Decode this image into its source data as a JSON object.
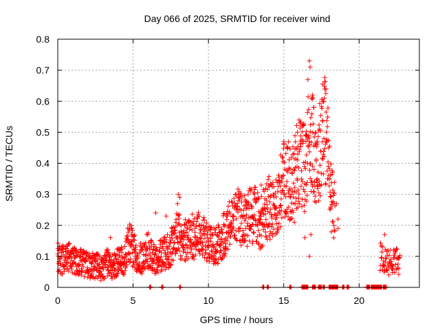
{
  "chart_data": {
    "type": "scatter",
    "title": "Day 066 of 2025, SRMTID for receiver wind",
    "xlabel": "GPS time / hours",
    "ylabel": "SRMTID / TECUs",
    "xlim": [
      0,
      24
    ],
    "ylim": [
      0,
      0.8
    ],
    "xticks": [
      0,
      5,
      10,
      15,
      20
    ],
    "xtick_labels": [
      "0",
      "5",
      "10",
      "15",
      "20"
    ],
    "yticks": [
      0,
      0.1,
      0.2,
      0.3,
      0.4,
      0.5,
      0.6,
      0.7,
      0.8
    ],
    "ytick_labels": [
      "0",
      "0.1",
      "0.2",
      "0.3",
      "0.4",
      "0.5",
      "0.6",
      "0.7",
      "0.8"
    ],
    "grid": true,
    "marker": "+",
    "color": "#ff0000",
    "series": [
      {
        "name": "SRMTID",
        "trend": [
          [
            0.0,
            0.1
          ],
          [
            0.3,
            0.09
          ],
          [
            0.6,
            0.1
          ],
          [
            1.0,
            0.09
          ],
          [
            1.5,
            0.08
          ],
          [
            2.0,
            0.07
          ],
          [
            2.5,
            0.07
          ],
          [
            3.0,
            0.06
          ],
          [
            3.3,
            0.08
          ],
          [
            3.6,
            0.07
          ],
          [
            4.0,
            0.08
          ],
          [
            4.4,
            0.09
          ],
          [
            4.6,
            0.13
          ],
          [
            4.8,
            0.15
          ],
          [
            5.0,
            0.12
          ],
          [
            5.3,
            0.1
          ],
          [
            5.6,
            0.09
          ],
          [
            5.8,
            0.11
          ],
          [
            6.0,
            0.12
          ],
          [
            6.2,
            0.1
          ],
          [
            6.5,
            0.09
          ],
          [
            6.8,
            0.1
          ],
          [
            7.1,
            0.11
          ],
          [
            7.4,
            0.12
          ],
          [
            7.6,
            0.14
          ],
          [
            7.9,
            0.17
          ],
          [
            8.2,
            0.16
          ],
          [
            8.5,
            0.15
          ],
          [
            8.8,
            0.17
          ],
          [
            9.1,
            0.16
          ],
          [
            9.4,
            0.18
          ],
          [
            9.8,
            0.16
          ],
          [
            10.1,
            0.14
          ],
          [
            10.4,
            0.13
          ],
          [
            10.7,
            0.14
          ],
          [
            11.0,
            0.17
          ],
          [
            11.3,
            0.19
          ],
          [
            11.6,
            0.21
          ],
          [
            11.9,
            0.23
          ],
          [
            12.2,
            0.22
          ],
          [
            12.5,
            0.21
          ],
          [
            12.8,
            0.24
          ],
          [
            13.1,
            0.23
          ],
          [
            13.4,
            0.21
          ],
          [
            13.7,
            0.23
          ],
          [
            14.0,
            0.26
          ],
          [
            14.3,
            0.24
          ],
          [
            14.6,
            0.28
          ],
          [
            14.9,
            0.33
          ],
          [
            15.2,
            0.36
          ],
          [
            15.5,
            0.32
          ],
          [
            15.8,
            0.38
          ],
          [
            16.1,
            0.42
          ],
          [
            16.4,
            0.38
          ],
          [
            16.7,
            0.5
          ],
          [
            17.0,
            0.44
          ],
          [
            17.3,
            0.4
          ],
          [
            17.6,
            0.55
          ],
          [
            17.9,
            0.46
          ],
          [
            18.1,
            0.3
          ],
          [
            18.4,
            0.24
          ]
        ],
        "late_trend": [
          [
            21.4,
            0.1
          ],
          [
            21.7,
            0.09
          ],
          [
            22.0,
            0.08
          ],
          [
            22.3,
            0.09
          ],
          [
            22.7,
            0.08
          ]
        ],
        "peaks": [
          [
            16.7,
            0.73
          ],
          [
            16.75,
            0.71
          ],
          [
            16.9,
            0.62
          ],
          [
            17.0,
            0.58
          ],
          [
            17.6,
            0.6
          ],
          [
            17.8,
            0.64
          ],
          [
            17.7,
            0.61
          ],
          [
            16.2,
            0.52
          ],
          [
            16.5,
            0.49
          ],
          [
            15.9,
            0.5
          ],
          [
            8.0,
            0.3
          ],
          [
            8.1,
            0.29
          ],
          [
            7.95,
            0.27
          ],
          [
            6.5,
            0.24
          ],
          [
            7.2,
            0.23
          ],
          [
            15.0,
            0.47
          ],
          [
            16.6,
            0.67
          ],
          [
            17.2,
            0.46
          ],
          [
            18.5,
            0.27
          ],
          [
            18.6,
            0.22
          ],
          [
            18.6,
            0.19
          ],
          [
            16.8,
            0.17
          ],
          [
            16.7,
            0.1
          ],
          [
            16.4,
            0.16
          ],
          [
            15.7,
            0.21
          ],
          [
            13.5,
            0.33
          ],
          [
            12.0,
            0.28
          ],
          [
            4.9,
            0.19
          ],
          [
            3.5,
            0.16
          ],
          [
            21.7,
            0.17
          ]
        ],
        "zero_ranges": [
          [
            6.1,
            6.2
          ],
          [
            6.9,
            7.0
          ],
          [
            8.1,
            8.15
          ],
          [
            13.6,
            13.7
          ],
          [
            13.9,
            14.0
          ],
          [
            15.4,
            15.5
          ],
          [
            16.2,
            16.6
          ],
          [
            16.9,
            17.1
          ],
          [
            17.3,
            17.5
          ],
          [
            17.6,
            17.7
          ],
          [
            18.0,
            18.6
          ],
          [
            18.9,
            19.0
          ],
          [
            19.2,
            19.3
          ],
          [
            20.5,
            20.7
          ],
          [
            20.8,
            21.5
          ],
          [
            21.6,
            21.8
          ]
        ]
      }
    ]
  }
}
